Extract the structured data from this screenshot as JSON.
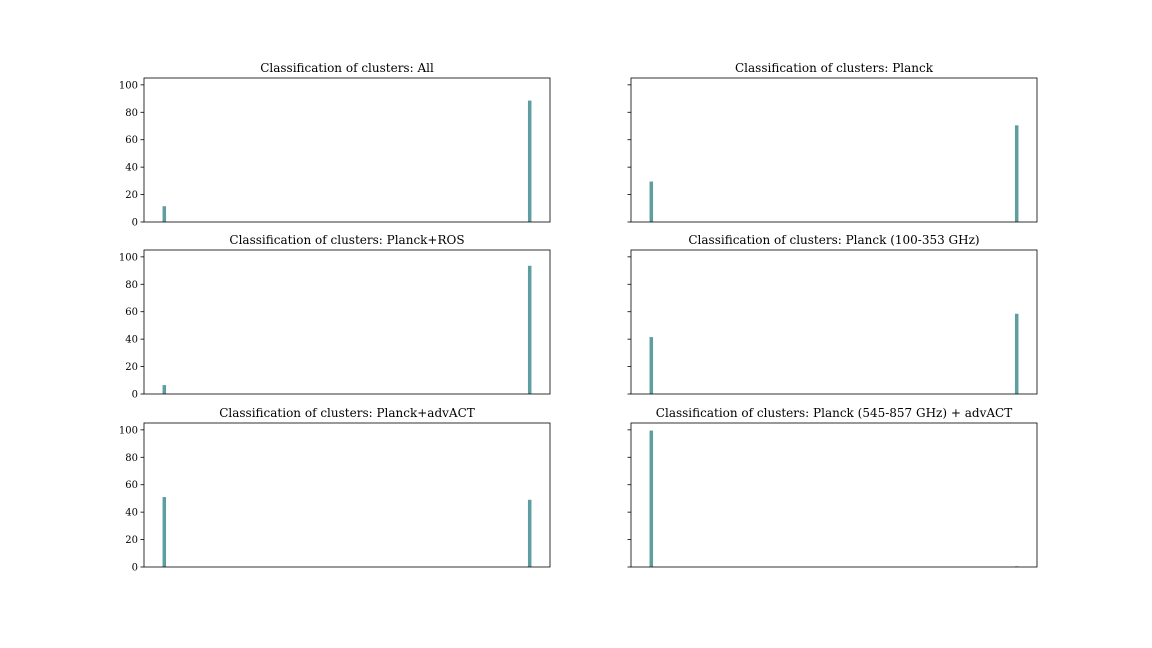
{
  "chart_data": [
    {
      "type": "bar",
      "title": "Classification of clusters: All",
      "categories": [
        "",
        ""
      ],
      "values": [
        11.5,
        88.5
      ],
      "ylim": [
        0,
        105
      ],
      "yticks": [
        0,
        20,
        40,
        60,
        80,
        100
      ],
      "show_ytick_labels": true,
      "color": "#5f9ea0",
      "grid": false
    },
    {
      "type": "bar",
      "title": "Classification of clusters: Planck",
      "categories": [
        "",
        ""
      ],
      "values": [
        29.5,
        70.5
      ],
      "ylim": [
        0,
        105
      ],
      "yticks": [
        0,
        20,
        40,
        60,
        80,
        100
      ],
      "show_ytick_labels": false,
      "color": "#5f9ea0",
      "grid": false
    },
    {
      "type": "bar",
      "title": "Classification of clusters: Planck+ROS",
      "categories": [
        "",
        ""
      ],
      "values": [
        6.5,
        93.5
      ],
      "ylim": [
        0,
        105
      ],
      "yticks": [
        0,
        20,
        40,
        60,
        80,
        100
      ],
      "show_ytick_labels": true,
      "color": "#5f9ea0",
      "grid": false
    },
    {
      "type": "bar",
      "title": "Classification of clusters: Planck (100-353 GHz)",
      "categories": [
        "",
        ""
      ],
      "values": [
        41.5,
        58.5
      ],
      "ylim": [
        0,
        105
      ],
      "yticks": [
        0,
        20,
        40,
        60,
        80,
        100
      ],
      "show_ytick_labels": false,
      "color": "#5f9ea0",
      "grid": false
    },
    {
      "type": "bar",
      "title": "Classification of clusters: Planck+advACT",
      "categories": [
        "",
        ""
      ],
      "values": [
        51,
        49
      ],
      "ylim": [
        0,
        105
      ],
      "yticks": [
        0,
        20,
        40,
        60,
        80,
        100
      ],
      "show_ytick_labels": true,
      "color": "#5f9ea0",
      "grid": false
    },
    {
      "type": "bar",
      "title": "Classification of clusters: Planck (545-857 GHz) + advACT",
      "categories": [
        "",
        ""
      ],
      "values": [
        99.5,
        0.5
      ],
      "ylim": [
        0,
        105
      ],
      "yticks": [
        0,
        20,
        40,
        60,
        80,
        100
      ],
      "show_ytick_labels": false,
      "color": "#5f9ea0",
      "grid": false
    }
  ]
}
